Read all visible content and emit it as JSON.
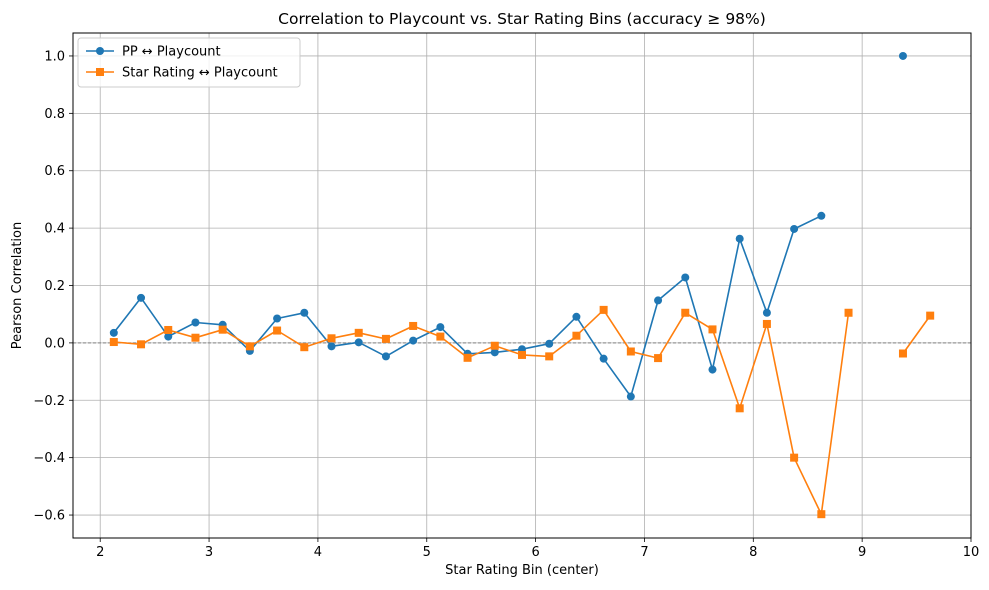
{
  "chart_data": {
    "type": "line",
    "title": "Correlation to Playcount vs. Star Rating Bins (accuracy ≥ 98%)",
    "xlabel": "Star Rating Bin (center)",
    "ylabel": "Pearson Correlation",
    "xlim": [
      1.75,
      10
    ],
    "ylim": [
      -0.68,
      1.08
    ],
    "xticks": [
      2,
      3,
      4,
      5,
      6,
      7,
      8,
      9,
      10
    ],
    "yticks": [
      -0.6,
      -0.4,
      -0.2,
      0.0,
      0.2,
      0.4,
      0.6,
      0.8,
      1.0
    ],
    "xtick_labels": [
      "2",
      "3",
      "4",
      "5",
      "6",
      "7",
      "8",
      "9",
      "10"
    ],
    "ytick_labels": [
      "−0.6",
      "−0.4",
      "−0.2",
      "0.0",
      "0.2",
      "0.4",
      "0.6",
      "0.8",
      "1.0"
    ],
    "grid": true,
    "reference_line": 0,
    "legend_position": "top-left",
    "series": [
      {
        "name": "PP ↔ Playcount",
        "color": "#1f77b4",
        "marker": "circle",
        "points": [
          [
            2.125,
            0.035
          ],
          [
            2.375,
            0.157
          ],
          [
            2.625,
            0.022
          ],
          [
            2.875,
            0.071
          ],
          [
            3.125,
            0.063
          ],
          [
            3.375,
            -0.028
          ],
          [
            3.625,
            0.085
          ],
          [
            3.875,
            0.105
          ],
          [
            4.125,
            -0.012
          ],
          [
            4.375,
            0.002
          ],
          [
            4.625,
            -0.047
          ],
          [
            4.875,
            0.008
          ],
          [
            5.125,
            0.055
          ],
          [
            5.375,
            -0.038
          ],
          [
            5.625,
            -0.033
          ],
          [
            5.875,
            -0.022
          ],
          [
            6.125,
            -0.003
          ],
          [
            6.375,
            0.091
          ],
          [
            6.625,
            -0.055
          ],
          [
            6.875,
            -0.187
          ],
          [
            7.125,
            0.148
          ],
          [
            7.375,
            0.228
          ],
          [
            7.625,
            -0.093
          ],
          [
            7.875,
            0.363
          ],
          [
            8.125,
            0.105
          ],
          [
            8.375,
            0.397
          ],
          [
            8.625,
            0.443
          ],
          [
            9.375,
            1.0
          ]
        ],
        "segments": [
          [
            0,
            26
          ],
          [
            27,
            27
          ]
        ]
      },
      {
        "name": "Star Rating ↔ Playcount",
        "color": "#ff7f0e",
        "marker": "square",
        "points": [
          [
            2.125,
            0.003
          ],
          [
            2.375,
            -0.005
          ],
          [
            2.625,
            0.045
          ],
          [
            2.875,
            0.018
          ],
          [
            3.125,
            0.046
          ],
          [
            3.375,
            -0.012
          ],
          [
            3.625,
            0.043
          ],
          [
            3.875,
            -0.015
          ],
          [
            4.125,
            0.016
          ],
          [
            4.375,
            0.035
          ],
          [
            4.625,
            0.014
          ],
          [
            4.875,
            0.059
          ],
          [
            5.125,
            0.022
          ],
          [
            5.375,
            -0.052
          ],
          [
            5.625,
            -0.01
          ],
          [
            5.875,
            -0.042
          ],
          [
            6.125,
            -0.047
          ],
          [
            6.375,
            0.025
          ],
          [
            6.625,
            0.115
          ],
          [
            6.875,
            -0.03
          ],
          [
            7.125,
            -0.053
          ],
          [
            7.375,
            0.105
          ],
          [
            7.625,
            0.047
          ],
          [
            7.875,
            -0.228
          ],
          [
            8.125,
            0.066
          ],
          [
            8.375,
            -0.4
          ],
          [
            8.625,
            -0.597
          ],
          [
            8.875,
            0.105
          ],
          [
            9.375,
            -0.037
          ],
          [
            9.625,
            0.095
          ]
        ],
        "segments": [
          [
            0,
            27
          ],
          [
            28,
            29
          ]
        ]
      }
    ]
  }
}
